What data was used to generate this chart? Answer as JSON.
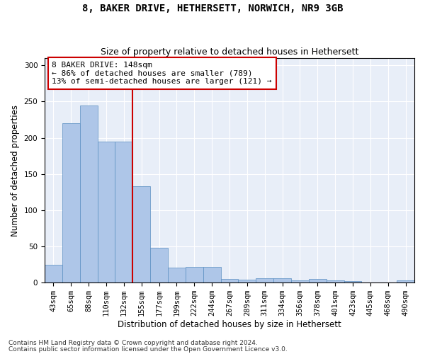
{
  "title_line1": "8, BAKER DRIVE, HETHERSETT, NORWICH, NR9 3GB",
  "title_line2": "Size of property relative to detached houses in Hethersett",
  "xlabel": "Distribution of detached houses by size in Hethersett",
  "ylabel": "Number of detached properties",
  "categories": [
    "43sqm",
    "65sqm",
    "88sqm",
    "110sqm",
    "132sqm",
    "155sqm",
    "177sqm",
    "199sqm",
    "222sqm",
    "244sqm",
    "267sqm",
    "289sqm",
    "311sqm",
    "334sqm",
    "356sqm",
    "378sqm",
    "401sqm",
    "423sqm",
    "445sqm",
    "468sqm",
    "490sqm"
  ],
  "values": [
    25,
    220,
    245,
    195,
    195,
    133,
    48,
    21,
    22,
    22,
    5,
    4,
    6,
    6,
    3,
    5,
    3,
    2,
    0,
    0,
    3
  ],
  "bar_color": "#aec6e8",
  "bar_edge_color": "#5a8fc2",
  "vline_x_index": 4.5,
  "vline_color": "#cc0000",
  "annotation_text": "8 BAKER DRIVE: 148sqm\n← 86% of detached houses are smaller (789)\n13% of semi-detached houses are larger (121) →",
  "annotation_box_color": "white",
  "annotation_box_edge_color": "#cc0000",
  "ylim": [
    0,
    310
  ],
  "yticks": [
    0,
    50,
    100,
    150,
    200,
    250,
    300
  ],
  "footer_line1": "Contains HM Land Registry data © Crown copyright and database right 2024.",
  "footer_line2": "Contains public sector information licensed under the Open Government Licence v3.0.",
  "bg_color": "#e8eef8",
  "title_fontsize": 10,
  "subtitle_fontsize": 9,
  "axis_label_fontsize": 8.5,
  "tick_fontsize": 7.5,
  "footer_fontsize": 6.5,
  "annotation_fontsize": 8
}
